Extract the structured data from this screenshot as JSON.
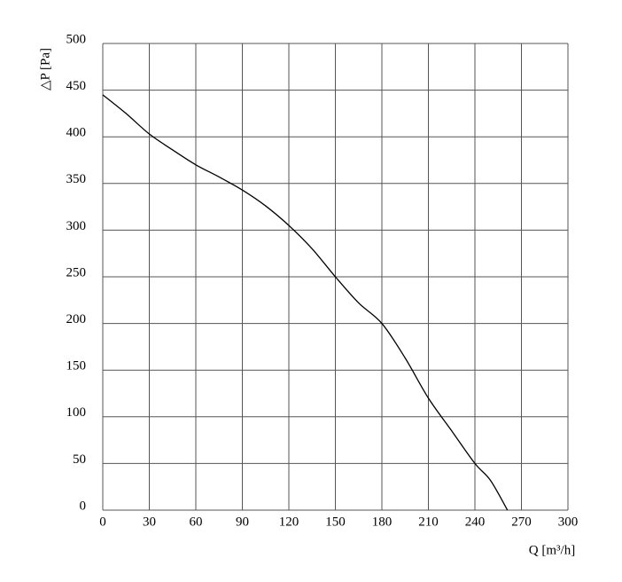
{
  "chart_data": {
    "type": "line",
    "x_label": "Q [m³/h]",
    "y_label": "△P [Pa]",
    "x": [
      0,
      15,
      30,
      45,
      60,
      75,
      90,
      105,
      120,
      135,
      150,
      165,
      180,
      195,
      210,
      225,
      240,
      250,
      261
    ],
    "series": [
      {
        "color": "#000000",
        "values": [
          445,
          425,
          403,
          386,
          370,
          357,
          343,
          326,
          305,
          280,
          250,
          222,
          200,
          163,
          120,
          85,
          50,
          32,
          0
        ]
      }
    ],
    "xlim": [
      0,
      300
    ],
    "ylim": [
      0,
      500
    ],
    "xticks": [
      0,
      30,
      60,
      90,
      120,
      150,
      180,
      210,
      240,
      270,
      300
    ],
    "yticks": [
      0,
      50,
      100,
      150,
      200,
      250,
      300,
      350,
      400,
      450,
      500
    ],
    "grid": true
  }
}
